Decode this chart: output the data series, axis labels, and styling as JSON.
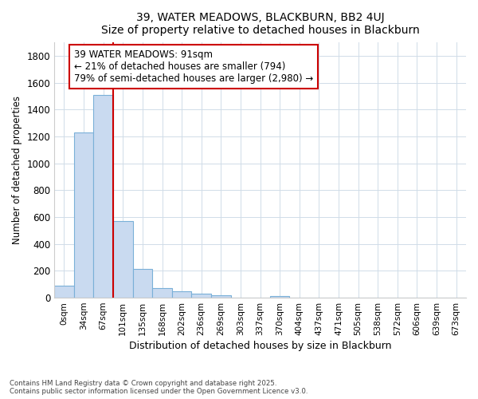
{
  "title": "39, WATER MEADOWS, BLACKBURN, BB2 4UJ",
  "subtitle": "Size of property relative to detached houses in Blackburn",
  "xlabel": "Distribution of detached houses by size in Blackburn",
  "ylabel": "Number of detached properties",
  "categories": [
    "0sqm",
    "34sqm",
    "67sqm",
    "101sqm",
    "135sqm",
    "168sqm",
    "202sqm",
    "236sqm",
    "269sqm",
    "303sqm",
    "337sqm",
    "370sqm",
    "404sqm",
    "437sqm",
    "471sqm",
    "505sqm",
    "538sqm",
    "572sqm",
    "606sqm",
    "639sqm",
    "673sqm"
  ],
  "values": [
    90,
    1230,
    1510,
    570,
    215,
    70,
    50,
    30,
    20,
    0,
    0,
    10,
    0,
    0,
    0,
    0,
    0,
    0,
    0,
    0,
    0
  ],
  "bar_color": "#c9daf0",
  "bar_edge_color": "#7ab0d8",
  "property_line_x": 2.5,
  "annotation_text": "39 WATER MEADOWS: 91sqm\n← 21% of detached houses are smaller (794)\n79% of semi-detached houses are larger (2,980) →",
  "annotation_box_color": "#ffffff",
  "annotation_box_edge": "#cc0000",
  "property_line_color": "#cc0000",
  "ylim": [
    0,
    1900
  ],
  "yticks": [
    0,
    200,
    400,
    600,
    800,
    1000,
    1200,
    1400,
    1600,
    1800
  ],
  "footer_line1": "Contains HM Land Registry data © Crown copyright and database right 2025.",
  "footer_line2": "Contains public sector information licensed under the Open Government Licence v3.0.",
  "background_color": "#ffffff",
  "plot_background": "#ffffff",
  "grid_color": "#d0dce8"
}
